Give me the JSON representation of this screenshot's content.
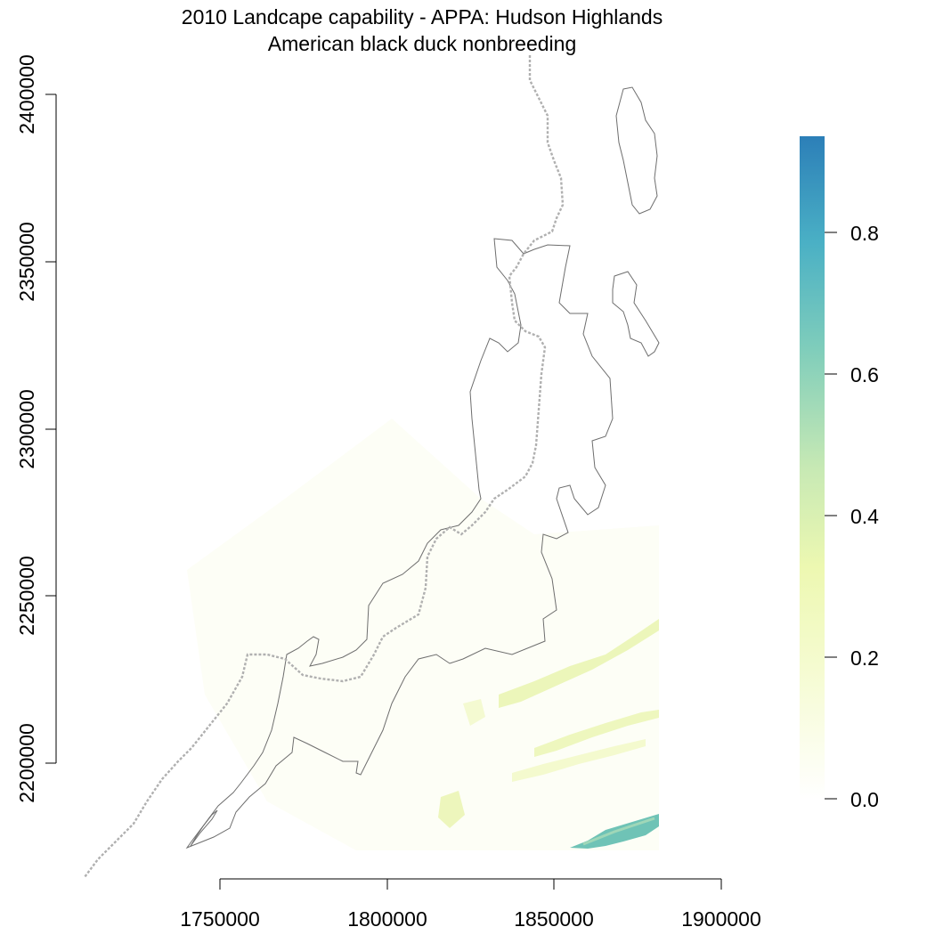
{
  "title": "2010 Landcape capability - APPA: Hudson Highlands",
  "subtitle": "American black duck nonbreeding",
  "chart_data": {
    "type": "heatmap",
    "x_ticks": [
      "1750000",
      "1800000",
      "1850000",
      "1900000"
    ],
    "y_ticks": [
      "2200000",
      "2250000",
      "2300000",
      "2350000",
      "2400000"
    ],
    "xlim": [
      1750000,
      1900000
    ],
    "ylim": [
      2200000,
      2400000
    ],
    "legend": {
      "position": "right",
      "ticks": [
        "0.0",
        "0.2",
        "0.4",
        "0.6",
        "0.8"
      ],
      "range": [
        0,
        0.93
      ],
      "colors": [
        "#ffffe5",
        "#edf8b1",
        "#c7e9b4",
        "#7fcdbb",
        "#41b6c4",
        "#2c7fb8"
      ]
    },
    "layers": [
      "capability raster",
      "APPA boundary (solid grey)",
      "state boundary (dashed grey)"
    ]
  }
}
